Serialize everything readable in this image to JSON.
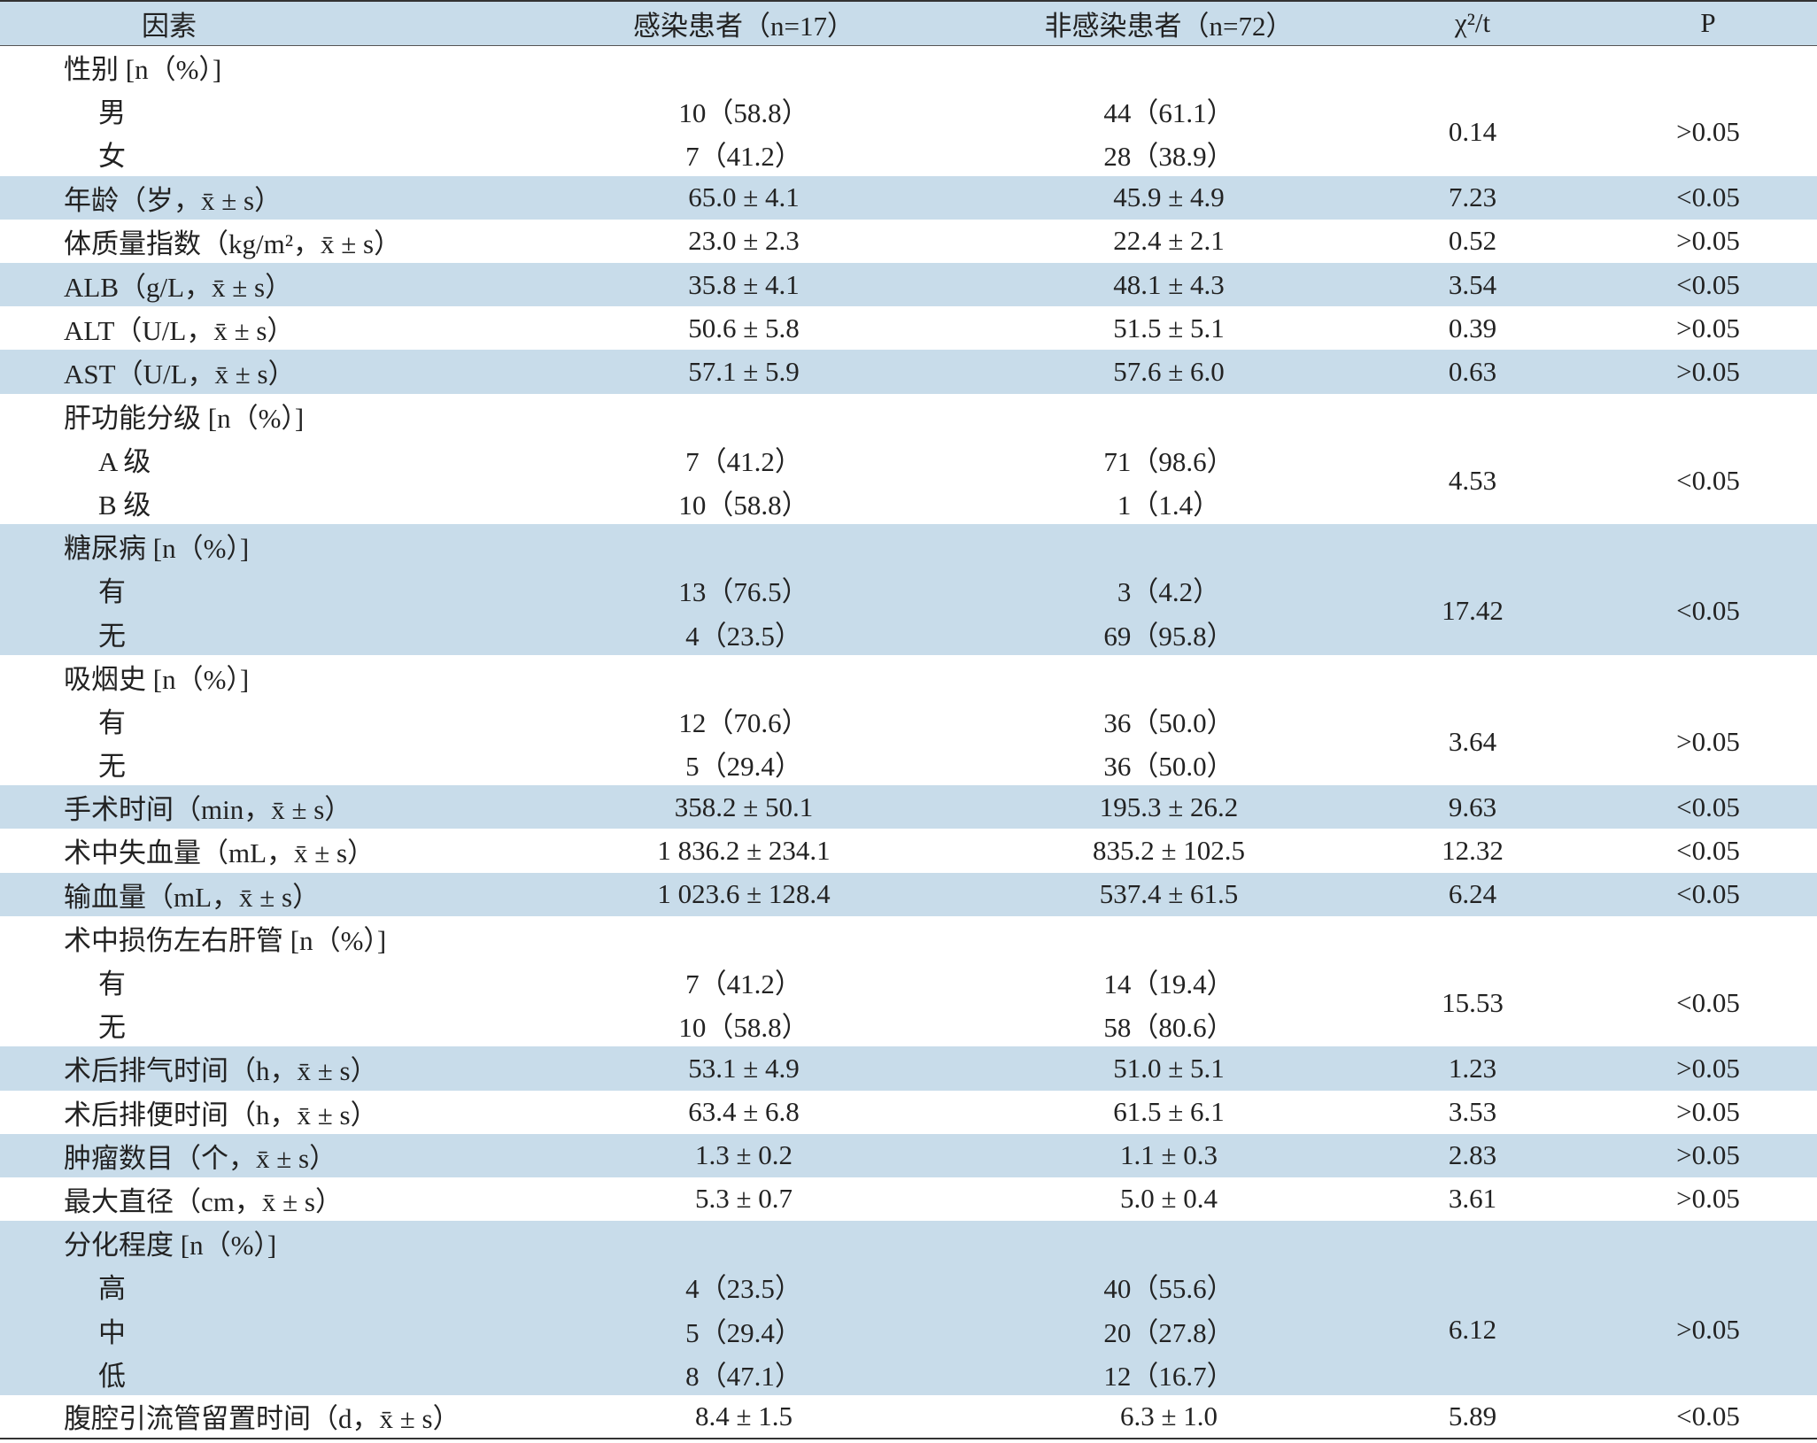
{
  "table": {
    "header": [
      "因素",
      "感染患者（n=17）",
      "非感染患者（n=72）",
      "χ²/t",
      "P"
    ],
    "rows": [
      {
        "label": "性别 [n（%）]",
        "items": [
          {
            "label": "男",
            "infected": "10（58.8）",
            "noninfected": "44（61.1）"
          },
          {
            "label": "女",
            "infected": "7（41.2）",
            "noninfected": "28（38.9）"
          }
        ],
        "stat": "0.14",
        "p": ">0.05"
      },
      {
        "label": "年龄（岁，x̄ ± s）",
        "infected": "65.0 ± 4.1",
        "noninfected": "45.9 ± 4.9",
        "stat": "7.23",
        "p": "<0.05"
      },
      {
        "label": "体质量指数（kg/m²，x̄ ± s）",
        "infected": "23.0 ± 2.3",
        "noninfected": "22.4 ± 2.1",
        "stat": "0.52",
        "p": ">0.05"
      },
      {
        "label": "ALB（g/L，x̄ ± s）",
        "infected": "35.8 ± 4.1",
        "noninfected": "48.1 ± 4.3",
        "stat": "3.54",
        "p": "<0.05"
      },
      {
        "label": "ALT（U/L，x̄ ± s）",
        "infected": "50.6 ± 5.8",
        "noninfected": "51.5 ± 5.1",
        "stat": "0.39",
        "p": ">0.05"
      },
      {
        "label": "AST（U/L，x̄ ± s）",
        "infected": "57.1 ± 5.9",
        "noninfected": "57.6 ± 6.0",
        "stat": "0.63",
        "p": ">0.05"
      },
      {
        "label": "肝功能分级 [n（%）]",
        "items": [
          {
            "label": "A 级",
            "infected": "7（41.2）",
            "noninfected": "71（98.6）"
          },
          {
            "label": "B 级",
            "infected": "10（58.8）",
            "noninfected": "1（1.4）"
          }
        ],
        "stat": "4.53",
        "p": "<0.05"
      },
      {
        "label": "糖尿病 [n（%）]",
        "items": [
          {
            "label": "有",
            "infected": "13（76.5）",
            "noninfected": "3（4.2）"
          },
          {
            "label": "无",
            "infected": "4（23.5）",
            "noninfected": "69（95.8）"
          }
        ],
        "stat": "17.42",
        "p": "<0.05"
      },
      {
        "label": "吸烟史 [n（%）]",
        "items": [
          {
            "label": "有",
            "infected": "12（70.6）",
            "noninfected": "36（50.0）"
          },
          {
            "label": "无",
            "infected": "5（29.4）",
            "noninfected": "36（50.0）"
          }
        ],
        "stat": "3.64",
        "p": ">0.05"
      },
      {
        "label": "手术时间（min，x̄ ± s）",
        "infected": "358.2 ± 50.1",
        "noninfected": "195.3 ± 26.2",
        "stat": "9.63",
        "p": "<0.05"
      },
      {
        "label": "术中失血量（mL，x̄ ± s）",
        "infected": "1 836.2 ± 234.1",
        "noninfected": "835.2 ± 102.5",
        "stat": "12.32",
        "p": "<0.05"
      },
      {
        "label": "输血量（mL，x̄ ± s）",
        "infected": "1 023.6 ± 128.4",
        "noninfected": "537.4 ± 61.5",
        "stat": "6.24",
        "p": "<0.05"
      },
      {
        "label": "术中损伤左右肝管 [n（%）]",
        "items": [
          {
            "label": "有",
            "infected": "7（41.2）",
            "noninfected": "14（19.4）"
          },
          {
            "label": "无",
            "infected": "10（58.8）",
            "noninfected": "58（80.6）"
          }
        ],
        "stat": "15.53",
        "p": "<0.05"
      },
      {
        "label": "术后排气时间（h，x̄ ± s）",
        "infected": "53.1 ± 4.9",
        "noninfected": "51.0 ± 5.1",
        "stat": "1.23",
        "p": ">0.05"
      },
      {
        "label": "术后排便时间（h，x̄ ± s）",
        "infected": "63.4 ± 6.8",
        "noninfected": "61.5 ± 6.1",
        "stat": "3.53",
        "p": ">0.05"
      },
      {
        "label": "肿瘤数目（个，x̄ ± s）",
        "infected": "1.3 ± 0.2",
        "noninfected": "1.1 ± 0.3",
        "stat": "2.83",
        "p": ">0.05"
      },
      {
        "label": "最大直径（cm，x̄ ± s）",
        "infected": "5.3 ± 0.7",
        "noninfected": "5.0 ± 0.4",
        "stat": "3.61",
        "p": ">0.05"
      },
      {
        "label": "分化程度 [n（%）]",
        "items": [
          {
            "label": "高",
            "infected": "4（23.5）",
            "noninfected": "40（55.6）"
          },
          {
            "label": "中",
            "infected": "5（29.4）",
            "noninfected": "20（27.8）"
          },
          {
            "label": "低",
            "infected": "8（47.1）",
            "noninfected": "12（16.7）"
          }
        ],
        "stat": "6.12",
        "p": ">0.05"
      },
      {
        "label": "腹腔引流管留置时间（d，x̄ ± s）",
        "infected": "8.4 ± 1.5",
        "noninfected": "6.3 ± 1.0",
        "stat": "5.89",
        "p": "<0.05"
      }
    ]
  }
}
